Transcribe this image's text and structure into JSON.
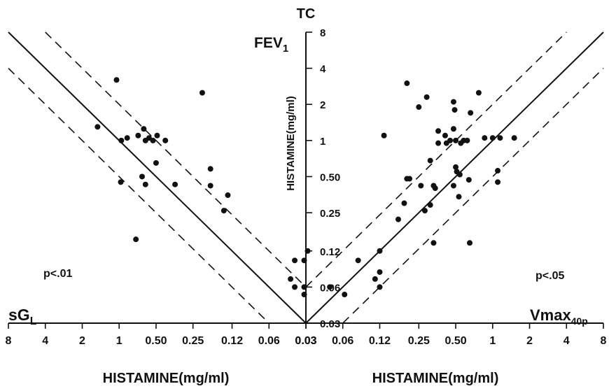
{
  "chart_data": {
    "type": "scatter",
    "title": "TC",
    "y_axis": {
      "label": "HISTAMINE(mg/ml)",
      "scale": "log2",
      "ticks": [
        "8",
        "4",
        "2",
        "1",
        "0.50",
        "0.25",
        "0.12",
        "0.06",
        "0.03"
      ],
      "tick_values": [
        8,
        4,
        2,
        1,
        0.5,
        0.25,
        0.12,
        0.06,
        0.03
      ],
      "range": [
        0.03,
        8
      ]
    },
    "panels": [
      {
        "name": "sGL",
        "corner_label_main": "sG",
        "corner_label_sub": "L",
        "p_value": "p<.01",
        "x_axis": {
          "label": "HISTAMINE(mg/ml)",
          "scale": "log2",
          "direction": "reversed",
          "ticks": [
            "8",
            "4",
            "2",
            "1",
            "0.50",
            "0.25",
            "0.12",
            "0.06",
            "0.03"
          ],
          "tick_values": [
            8,
            4,
            2,
            1,
            0.5,
            0.25,
            0.12,
            0.06,
            0.03
          ]
        },
        "regression_line": [
          [
            8,
            8
          ],
          [
            0.03,
            0.03
          ]
        ],
        "confidence_band_upper": [
          [
            4,
            8
          ],
          [
            0.03,
            0.06
          ]
        ],
        "confidence_band_lower": [
          [
            8,
            4
          ],
          [
            0.06,
            0.03
          ]
        ],
        "points": [
          [
            1.5,
            1.3
          ],
          [
            1.05,
            3.2
          ],
          [
            0.96,
            1.0
          ],
          [
            0.86,
            1.05
          ],
          [
            0.97,
            0.45
          ],
          [
            0.7,
            1.1
          ],
          [
            0.63,
            1.25
          ],
          [
            0.61,
            1.0
          ],
          [
            0.57,
            1.05
          ],
          [
            0.53,
            1.0
          ],
          [
            0.49,
            1.1
          ],
          [
            0.42,
            1.0
          ],
          [
            0.5,
            0.65
          ],
          [
            0.65,
            0.5
          ],
          [
            0.61,
            0.43
          ],
          [
            0.73,
            0.15
          ],
          [
            0.35,
            0.43
          ],
          [
            0.21,
            2.5
          ],
          [
            0.18,
            0.58
          ],
          [
            0.18,
            0.42
          ],
          [
            0.14,
            0.26
          ],
          [
            0.13,
            0.35
          ],
          [
            0.04,
            0.07
          ],
          [
            0.037,
            0.1
          ],
          [
            0.037,
            0.06
          ],
          [
            0.031,
            0.1
          ],
          [
            0.031,
            0.06
          ],
          [
            0.031,
            0.052
          ]
        ]
      },
      {
        "name": "Vmax40p",
        "corner_label_main": "Vmax",
        "corner_label_sub": "40p",
        "p_value": "p<.05",
        "x_axis": {
          "label": "HISTAMINE(mg/ml)",
          "scale": "log2",
          "direction": "normal",
          "ticks": [
            "0.03",
            "0.06",
            "0.12",
            "0.25",
            "0.50",
            "1",
            "2",
            "4",
            "8"
          ],
          "tick_values": [
            0.03,
            0.06,
            0.12,
            0.25,
            0.5,
            1,
            2,
            4,
            8
          ]
        },
        "regression_line": [
          [
            0.03,
            0.03
          ],
          [
            8,
            8
          ]
        ],
        "confidence_band_upper": [
          [
            0.03,
            0.06
          ],
          [
            4,
            8
          ]
        ],
        "confidence_band_lower": [
          [
            0.06,
            0.03
          ],
          [
            8,
            4
          ]
        ],
        "points": [
          [
            0.031,
            0.12
          ],
          [
            0.047,
            0.06
          ],
          [
            0.062,
            0.052
          ],
          [
            0.08,
            0.1
          ],
          [
            0.11,
            0.07
          ],
          [
            0.12,
            0.08
          ],
          [
            0.12,
            0.06
          ],
          [
            0.12,
            0.12
          ],
          [
            0.13,
            1.1
          ],
          [
            0.17,
            0.22
          ],
          [
            0.19,
            0.3
          ],
          [
            0.2,
            0.48
          ],
          [
            0.21,
            0.48
          ],
          [
            0.2,
            3.0
          ],
          [
            0.25,
            1.9
          ],
          [
            0.26,
            0.42
          ],
          [
            0.28,
            0.26
          ],
          [
            0.29,
            2.3
          ],
          [
            0.31,
            0.29
          ],
          [
            0.31,
            0.68
          ],
          [
            0.33,
            0.42
          ],
          [
            0.34,
            0.4
          ],
          [
            0.33,
            0.14
          ],
          [
            0.36,
            0.95
          ],
          [
            0.36,
            1.2
          ],
          [
            0.41,
            1.1
          ],
          [
            0.42,
            0.95
          ],
          [
            0.45,
            1.0
          ],
          [
            0.48,
            1.25
          ],
          [
            0.48,
            2.1
          ],
          [
            0.49,
            1.8
          ],
          [
            0.5,
            1.0
          ],
          [
            0.48,
            0.42
          ],
          [
            0.51,
            0.55
          ],
          [
            0.5,
            0.6
          ],
          [
            0.53,
            0.34
          ],
          [
            0.54,
            0.52
          ],
          [
            0.55,
            0.95
          ],
          [
            0.58,
            1.0
          ],
          [
            0.62,
            1.0
          ],
          [
            0.64,
            0.47
          ],
          [
            0.65,
            0.14
          ],
          [
            0.66,
            1.7
          ],
          [
            0.77,
            2.5
          ],
          [
            0.86,
            1.05
          ],
          [
            1.0,
            1.05
          ],
          [
            1.1,
            0.45
          ],
          [
            1.1,
            0.56
          ],
          [
            1.15,
            1.05
          ],
          [
            1.5,
            1.05
          ]
        ]
      }
    ],
    "center_label_main": "FEV",
    "center_label_sub": "1",
    "grid": false
  }
}
